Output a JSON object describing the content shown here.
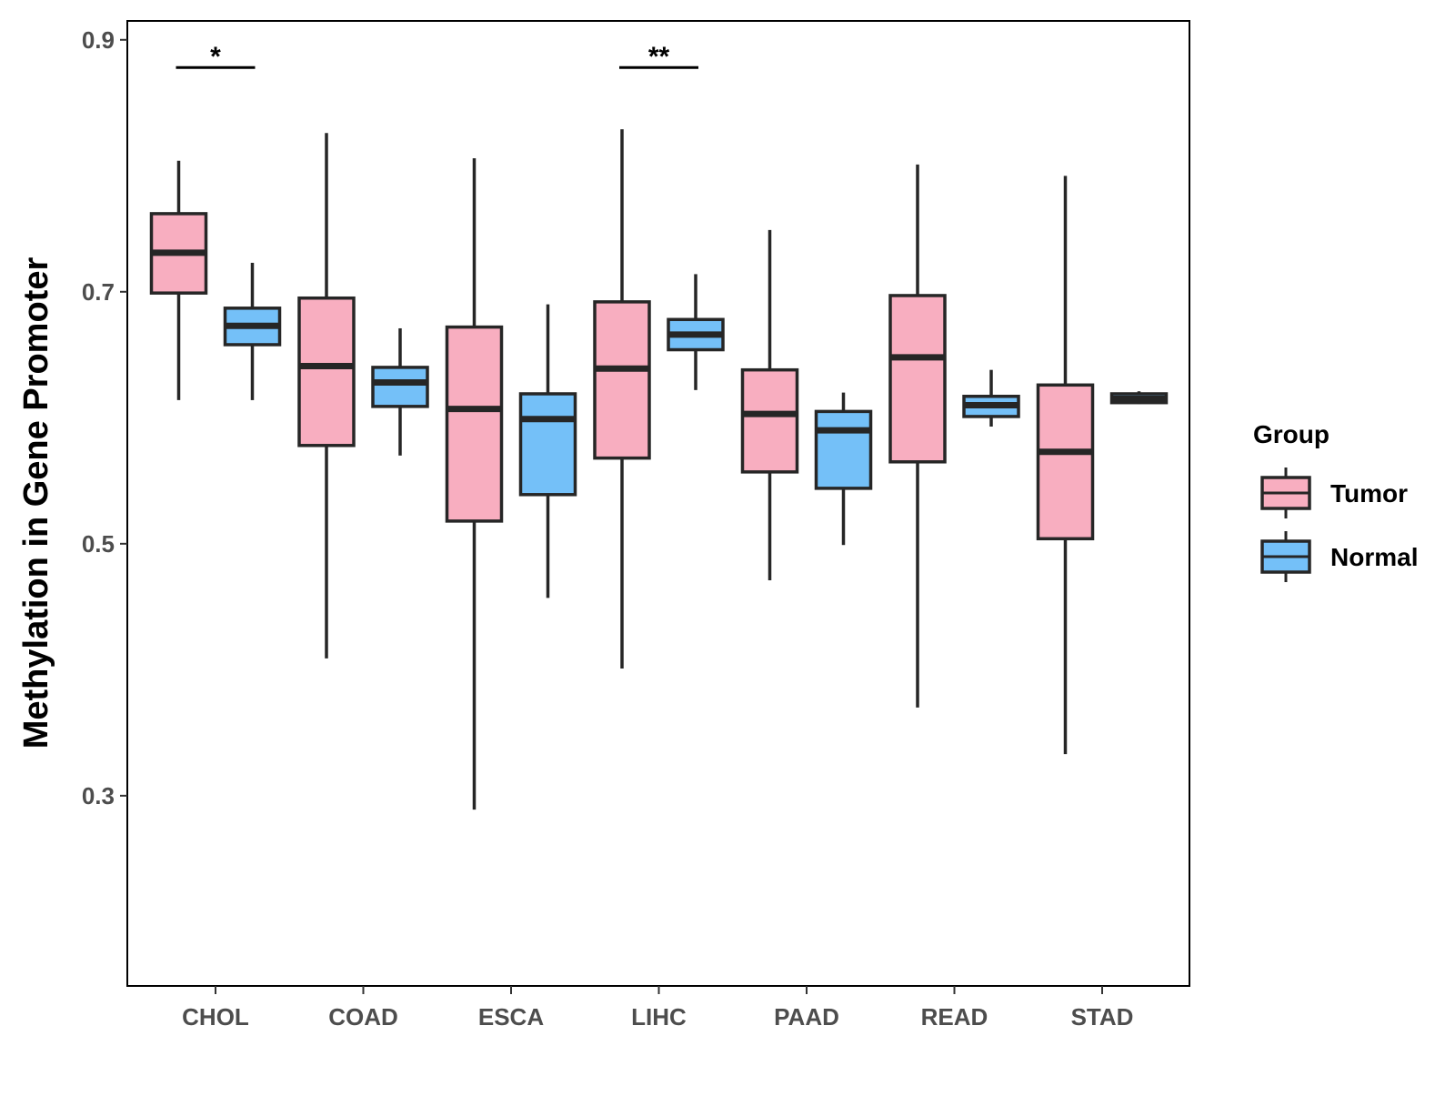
{
  "chart_data": {
    "type": "boxplot",
    "title": "",
    "xlabel": "",
    "ylabel": "Methylation in Gene Promoter",
    "ylim": [
      0.149,
      0.915
    ],
    "yticks": [
      0.3,
      0.5,
      0.7,
      0.9
    ],
    "ytick_labels": [
      "0.3",
      "0.5",
      "0.7",
      "0.9"
    ],
    "grid": false,
    "categories": [
      "CHOL",
      "COAD",
      "ESCA",
      "LIHC",
      "PAAD",
      "READ",
      "STAD"
    ],
    "legend": {
      "title": "Group",
      "position": "right",
      "entries": [
        {
          "name": "Tumor",
          "color": "#F8AEC0"
        },
        {
          "name": "Normal",
          "color": "#74C0F8"
        }
      ]
    },
    "series": [
      {
        "name": "Tumor",
        "color": "#F8AEC0",
        "boxes": [
          {
            "min": 0.614,
            "q1": 0.699,
            "median": 0.731,
            "q3": 0.762,
            "max": 0.804
          },
          {
            "min": 0.409,
            "q1": 0.578,
            "median": 0.641,
            "q3": 0.695,
            "max": 0.826
          },
          {
            "min": 0.289,
            "q1": 0.518,
            "median": 0.607,
            "q3": 0.672,
            "max": 0.806
          },
          {
            "min": 0.401,
            "q1": 0.568,
            "median": 0.639,
            "q3": 0.692,
            "max": 0.829
          },
          {
            "min": 0.471,
            "q1": 0.557,
            "median": 0.603,
            "q3": 0.638,
            "max": 0.749
          },
          {
            "min": 0.37,
            "q1": 0.565,
            "median": 0.648,
            "q3": 0.697,
            "max": 0.801
          },
          {
            "min": 0.333,
            "q1": 0.504,
            "median": 0.573,
            "q3": 0.626,
            "max": 0.792
          }
        ]
      },
      {
        "name": "Normal",
        "color": "#74C0F8",
        "boxes": [
          {
            "min": 0.614,
            "q1": 0.658,
            "median": 0.673,
            "q3": 0.687,
            "max": 0.723
          },
          {
            "min": 0.57,
            "q1": 0.609,
            "median": 0.628,
            "q3": 0.64,
            "max": 0.671
          },
          {
            "min": 0.457,
            "q1": 0.539,
            "median": 0.599,
            "q3": 0.619,
            "max": 0.69
          },
          {
            "min": 0.622,
            "q1": 0.654,
            "median": 0.666,
            "q3": 0.678,
            "max": 0.714
          },
          {
            "min": 0.499,
            "q1": 0.544,
            "median": 0.59,
            "q3": 0.605,
            "max": 0.62
          },
          {
            "min": 0.593,
            "q1": 0.601,
            "median": 0.61,
            "q3": 0.617,
            "max": 0.638
          },
          {
            "min": 0.611,
            "q1": 0.612,
            "median": 0.615,
            "q3": 0.619,
            "max": 0.621
          }
        ]
      }
    ],
    "annotations": [
      {
        "category": "CHOL",
        "label": "*",
        "y": 0.878
      },
      {
        "category": "LIHC",
        "label": "**",
        "y": 0.878
      }
    ]
  }
}
